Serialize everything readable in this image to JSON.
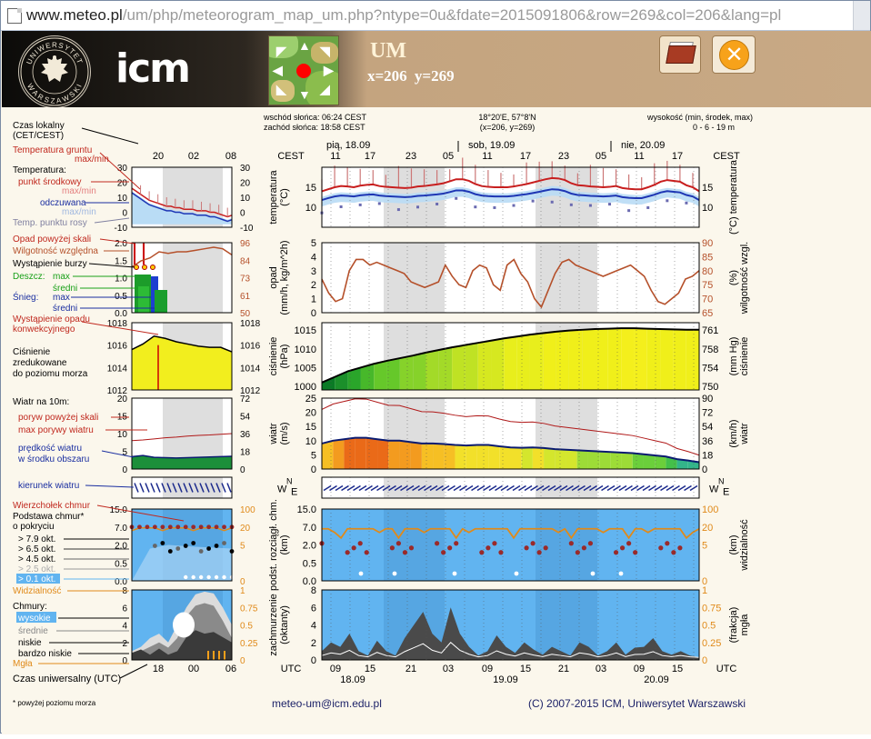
{
  "browser": {
    "url_domain": "www.meteo.pl",
    "url_path": "/um/php/meteorogram_map_um.php?ntype=0u&fdate=2015091806&row=269&col=206&lang=pl"
  },
  "header": {
    "crest_top_text": "UNIWERSYTET",
    "crest_bottom_text": "WARSZAWSKI",
    "logo_text": "icm",
    "model_name": "UM",
    "coords_text": "x=206   y=269",
    "close_label": "✕"
  },
  "info": {
    "sunrise": "wschód słońca: 06:24 CEST",
    "sunset": "zachód słońca: 18:58 CEST",
    "geo": "18°20'E, 57°8'N",
    "grid": "(x=206,  y=269)",
    "elev_label": "wysokość (min, środek, max)",
    "elev_value": "0 - 6 - 19 m"
  },
  "time_axis": {
    "top_unit": "CEST",
    "top_unit_right": "CEST",
    "top_hours": [
      "11",
      "17",
      "23",
      "05",
      "11",
      "17",
      "23",
      "05",
      "11",
      "17"
    ],
    "top_days": [
      "pią, 18.09",
      "sob, 19.09",
      "nie, 20.09"
    ],
    "bottom_unit": "UTC",
    "bottom_unit_right": "UTC",
    "bottom_hours": [
      "09",
      "15",
      "21",
      "03",
      "09",
      "15",
      "21",
      "03",
      "09",
      "15"
    ],
    "bottom_days": [
      "18.09",
      "19.09",
      "20.09"
    ],
    "legend_top_hours": [
      "20",
      "02",
      "08"
    ],
    "legend_bottom_hours": [
      "18",
      "00",
      "06"
    ]
  },
  "legend": {
    "local_time": "Czas lokalny\n(CET/CEST)",
    "ground_temp": "Temperatura gruntu",
    "ground_temp_sub": "max/min",
    "temperature": "Temperatura:",
    "mid_point": "punkt środkowy",
    "maxmin1": "max/min",
    "felt": "odczuwana",
    "maxmin2": "max/min",
    "dew_point": "Temp. punktu rosy",
    "precip_over": "Opad powyżej skali",
    "humidity": "Wilgotność względna",
    "storm": "Wystąpienie burzy",
    "rain": "Deszcz:",
    "rain_max": "max",
    "rain_avg": "średni",
    "snow": "Śnieg:",
    "snow_max": "max",
    "snow_avg": "średni",
    "conv": "Wystąpienie opadu\nkonwekcyjnego",
    "pressure": "Ciśnienie\nzredukowane\ndo poziomu morza",
    "wind_at": "Wiatr na 10m:",
    "gust_over": "poryw powyżej skali",
    "gust_max": "max porywy wiatru",
    "wind_speed": "prędkość wiatru\nw środku obszaru",
    "wind_dir": "kierunek wiatru",
    "cloud_top": "Wierzchołek chmur",
    "cloud_base": "Podstawa chmur*\no pokryciu",
    "okt": [
      "> 7.9 okt.",
      "> 6.5 okt.",
      "> 4.5 okt.",
      "> 2.5 okt.",
      "> 0.1 okt."
    ],
    "visibility": "Widzialność",
    "clouds": "Chmury:",
    "high": "wysokie",
    "mid": "średnie",
    "low": "niskie",
    "very_low": "bardzo niskie",
    "fog": "Mgła",
    "utc": "Czas uniwersalny (UTC)",
    "footnote": "* powyżej poziomu morza"
  },
  "panels": {
    "temp": {
      "left": "temperatura\n(°C)",
      "right": "(°C)  temperatura",
      "ticks": [
        "10",
        "15"
      ]
    },
    "precip": {
      "left": "opad\n(mm/h, kg/m^2h)",
      "right": "(%)\nwilgotność wzgl.",
      "ticks_l": [
        "0",
        "1",
        "2",
        "3",
        "4",
        "5"
      ],
      "ticks_r": [
        "65",
        "70",
        "75",
        "80",
        "85",
        "90"
      ]
    },
    "pressure": {
      "left": "ciśnienie\n(hPa)",
      "right": "(mm Hg)\nciśnienie",
      "ticks_l": [
        "1000",
        "1005",
        "1010",
        "1015"
      ],
      "ticks_r": [
        "750",
        "754",
        "758",
        "761"
      ]
    },
    "wind": {
      "left": "wiatr\n(m/s)",
      "right": "(km/h)\nwiatr",
      "ticks_l": [
        "0",
        "5",
        "10",
        "15",
        "20",
        "25"
      ],
      "ticks_r": [
        "0",
        "18",
        "36",
        "54",
        "72",
        "90"
      ]
    },
    "clouds": {
      "left": "podst. rozciągł. chm.\n(km)",
      "right": "(km)\nwidzialność",
      "ticks_l": [
        "0.0",
        "0.5",
        "2.0",
        "7.0",
        "15.0"
      ],
      "ticks_r": [
        "0",
        "5",
        "20",
        "100"
      ]
    },
    "cover": {
      "left": "zachmurzenie\n(oktanty)",
      "right": "(frakcja)\nmgła",
      "ticks_l": [
        "0",
        "2",
        "4",
        "6",
        "8"
      ],
      "ticks_r": [
        "0",
        "0.25",
        "0.5",
        "0.75",
        "1"
      ]
    }
  },
  "legend_ticks": {
    "temp_l": [
      "30",
      "20",
      "10",
      "0",
      "-10"
    ],
    "temp_r": [
      "30",
      "20",
      "10",
      "0",
      "-10"
    ],
    "prec_l": [
      "2.0",
      "1.5",
      "1.0",
      "0.5",
      "0.0"
    ],
    "prec_r": [
      "96",
      "84",
      "73",
      "61",
      "50"
    ],
    "press_l": [
      "1018",
      "1016",
      "1014",
      "1012"
    ],
    "press_r": [
      "1018",
      "1016",
      "1014",
      "1012"
    ],
    "wind_l": [
      "20",
      "15",
      "10",
      "5",
      "0"
    ],
    "wind_r": [
      "72",
      "54",
      "36",
      "18",
      "0"
    ],
    "cloud_l": [
      "15.0",
      "7.0",
      "2.0",
      "0.5",
      "0.0"
    ],
    "cloud_r": [
      "100",
      "20",
      "5",
      "0"
    ],
    "cov_l": [
      "8",
      "6",
      "4",
      "2",
      "0"
    ],
    "cov_r": [
      "1",
      "0.75",
      "0.5",
      "0.25",
      "0"
    ]
  },
  "footer": {
    "email": "meteo-um@icm.edu.pl",
    "copyright": "(C) 2007-2015 ICM, Uniwersytet Warszawski"
  },
  "colors": {
    "temp": "#c81e1e",
    "felt": "#1e36b4",
    "dew": "#6a6ab0",
    "humidity": "#b5502a",
    "panel_blue": "#61b4f0",
    "night": "#d8d8d8",
    "vis": "#e08a1a"
  }
}
